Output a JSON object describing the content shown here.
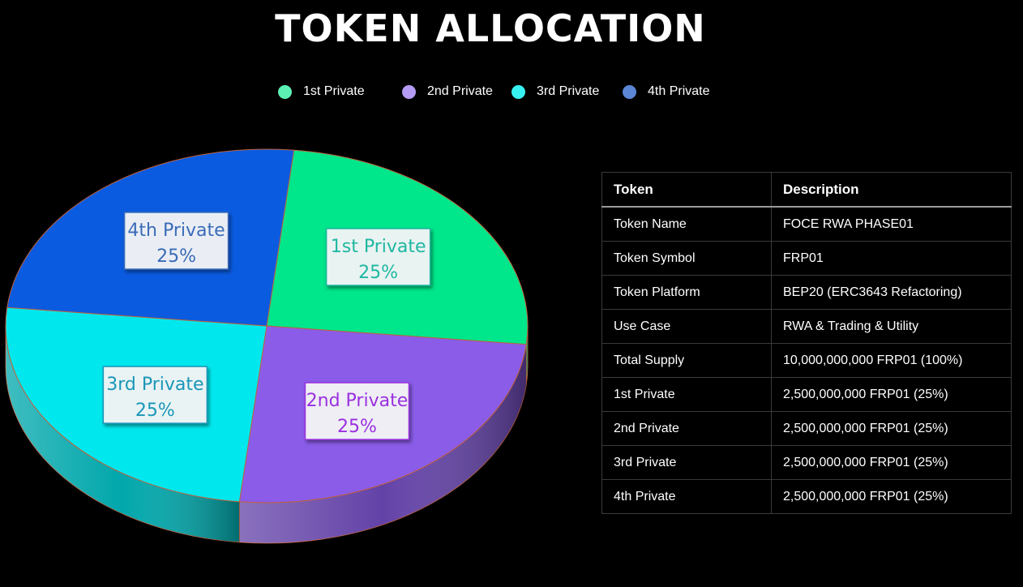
{
  "title": "TOKEN ALLOCATION",
  "chart_data": {
    "type": "pie",
    "style": "3d",
    "slices": [
      {
        "name": "1st Private",
        "value": 25,
        "label": "1st Private",
        "percent": "25%",
        "color": "#00E68A",
        "label_color": "#1FB7A2"
      },
      {
        "name": "2nd Private",
        "value": 25,
        "label": "2nd Private",
        "percent": "25%",
        "color": "#8A5CE8",
        "label_color": "#9B30E0"
      },
      {
        "name": "3rd Private",
        "value": 25,
        "label": "3rd Private",
        "percent": "25%",
        "color": "#00E8EE",
        "label_color": "#1A96B8"
      },
      {
        "name": "4th Private",
        "value": 25,
        "label": "4th Private",
        "percent": "25%",
        "color": "#0A5BE0",
        "label_color": "#3A6BB8"
      }
    ],
    "legend": {
      "position": "top",
      "items": [
        {
          "label": "1st Private",
          "color": "#5CF0B4"
        },
        {
          "label": "2nd Private",
          "color": "#B49CF4"
        },
        {
          "label": "3rd Private",
          "color": "#38F2F2"
        },
        {
          "label": "4th Private",
          "color": "#5B86D6"
        }
      ]
    }
  },
  "table": {
    "headers": [
      "Token",
      "Description"
    ],
    "rows": [
      [
        "Token Name",
        "FOCE RWA PHASE01"
      ],
      [
        "Token Symbol",
        "FRP01"
      ],
      [
        "Token Platform",
        "BEP20 (ERC3643 Refactoring)"
      ],
      [
        "Use Case",
        "RWA & Trading & Utility"
      ],
      [
        "Total Supply",
        "10,000,000,000 FRP01 (100%)"
      ],
      [
        "1st Private",
        "2,500,000,000 FRP01 (25%)"
      ],
      [
        "2nd Private",
        "2,500,000,000 FRP01 (25%)"
      ],
      [
        "3rd Private",
        "2,500,000,000 FRP01 (25%)"
      ],
      [
        "4th Private",
        "2,500,000,000 FRP01 (25%)"
      ]
    ]
  }
}
